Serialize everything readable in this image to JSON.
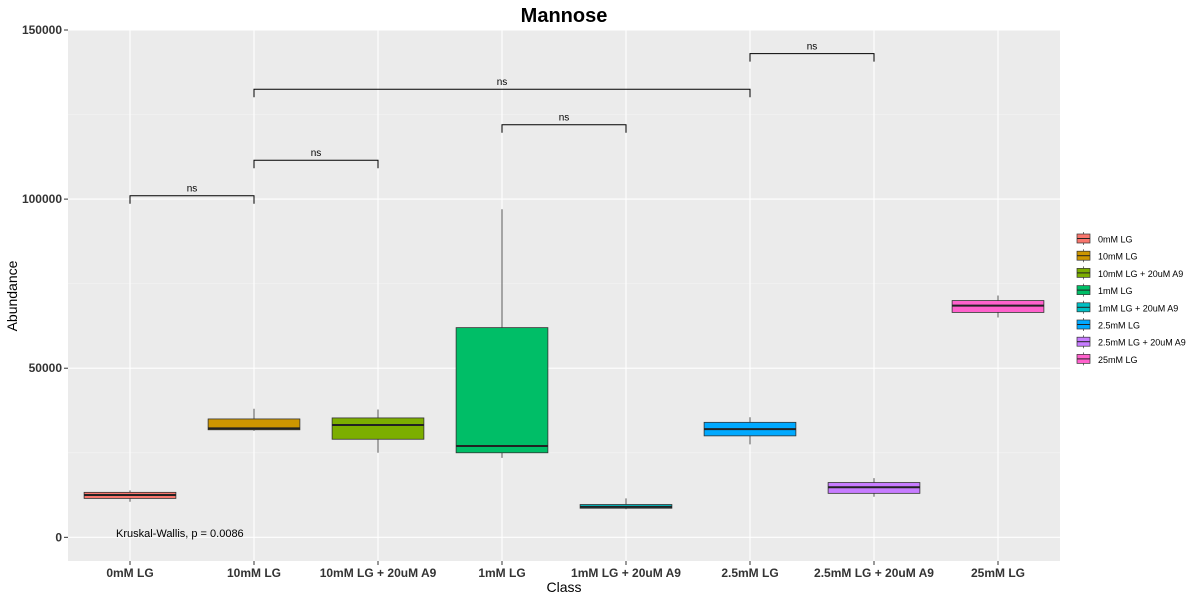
{
  "chart_data": {
    "type": "box",
    "title": "Mannose",
    "xlabel": "Class",
    "ylabel": "Abundance",
    "ylim": [
      -7000,
      150000
    ],
    "yticks": [
      0,
      50000,
      100000,
      150000
    ],
    "grid": true,
    "legend_position": "right",
    "categories": [
      "0mM LG",
      "10mM LG",
      "10mM LG + 20uM A9",
      "1mM LG",
      "1mM LG + 20uM A9",
      "2.5mM LG",
      "2.5mM LG + 20uM A9",
      "25mM LG"
    ],
    "colors": [
      "#F8766D",
      "#CD9600",
      "#7CAE00",
      "#00BE67",
      "#00BFC4",
      "#00A9FF",
      "#C77CFF",
      "#FF61CC"
    ],
    "boxes": [
      {
        "category": "0mM LG",
        "min": 10500,
        "q1": 11500,
        "median": 12500,
        "q3": 13300,
        "max": 13900
      },
      {
        "category": "10mM LG",
        "min": 31500,
        "q1": 31800,
        "median": 32200,
        "q3": 35000,
        "max": 38000
      },
      {
        "category": "10mM LG + 20uM A9",
        "min": 25000,
        "q1": 29000,
        "median": 33200,
        "q3": 35300,
        "max": 37800
      },
      {
        "category": "1mM LG",
        "min": 23500,
        "q1": 25000,
        "median": 27000,
        "q3": 62000,
        "max": 97000
      },
      {
        "category": "1mM LG + 20uM A9",
        "min": 8300,
        "q1": 8600,
        "median": 9000,
        "q3": 9700,
        "max": 11500
      },
      {
        "category": "2.5mM LG",
        "min": 27500,
        "q1": 30000,
        "median": 32000,
        "q3": 34000,
        "max": 35500
      },
      {
        "category": "2.5mM LG + 20uM A9",
        "min": 12000,
        "q1": 13000,
        "median": 14800,
        "q3": 16200,
        "max": 17500
      },
      {
        "category": "25mM LG",
        "min": 65000,
        "q1": 66500,
        "median": 68500,
        "q3": 70000,
        "max": 71500
      }
    ],
    "comparisons": [
      {
        "from": 0,
        "to": 1,
        "y": 101000,
        "label": "ns"
      },
      {
        "from": 1,
        "to": 2,
        "y": 111500,
        "label": "ns"
      },
      {
        "from": 3,
        "to": 4,
        "y": 122000,
        "label": "ns"
      },
      {
        "from": 1,
        "to": 5,
        "y": 132500,
        "label": "ns"
      },
      {
        "from": 5,
        "to": 6,
        "y": 143000,
        "label": "ns"
      }
    ],
    "annotation": "Kruskal-Wallis, p = 0.0086"
  }
}
